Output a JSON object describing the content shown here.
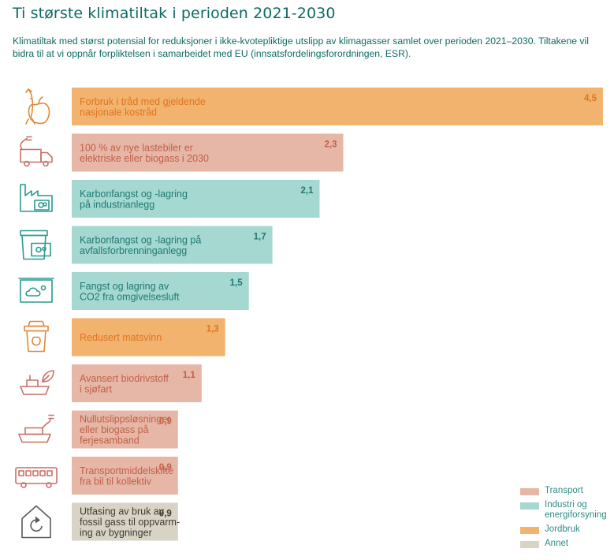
{
  "title": "Ti største klimatiltak i perioden 2021-2030",
  "subtitle": "Klimatiltak med størst potensial for reduksjoner i ikke-kvotepliktige utslipp av klimagasser samlet over perioden 2021–2030. Tiltakene vil bidra til at vi oppnår forpliktelsen i samarbeidet med EU (innsatsfordelingsforordningen, ESR).",
  "colors": {
    "Transport": {
      "bar": "#e6b7a6",
      "text": "#c25f48",
      "icon": "#c96f66"
    },
    "Industri og energiforsyning": {
      "bar": "#a5d8d1",
      "text": "#1d7a72",
      "icon": "#2a9a90"
    },
    "Jordbruk": {
      "bar": "#f2b36e",
      "text": "#df7422",
      "icon": "#e08a3a"
    },
    "Annet": {
      "bar": "#d8d3c4",
      "text": "#3f3a34",
      "icon": "#5e5a55"
    }
  },
  "legend": [
    {
      "name": "Transport",
      "label": "Transport"
    },
    {
      "name": "Industri og energiforsyning",
      "label": "Industri og energiforsyning"
    },
    {
      "name": "Jordbruk",
      "label": "Jordbruk"
    },
    {
      "name": "Annet",
      "label": "Annet"
    }
  ],
  "chart_data": {
    "type": "bar",
    "orientation": "horizontal",
    "title": "Ti største klimatiltak i perioden 2021-2030",
    "xlim": [
      0,
      4.5
    ],
    "categories": [
      "Forbruk i tråd med gjeldende nasjonale kostråd",
      "100 % av nye lastebiler er elektriske eller biogass i 2030",
      "Karbonfangst og -lagring på industrianlegg",
      "Karbonfangst og -lagring på avfallsforbrenninganlegg",
      "Fangst og lagring av CO2 fra omgivelsesluft",
      "Redusert matsvinn",
      "Avansert biodrivstoff i sjøfart",
      "Nullutslippsløsninger eller biogass på ferjesamband",
      "Transportmiddelskifte fra bil til kollektiv",
      "Utfasing av bruk av fossil gass til oppvarming av bygninger"
    ],
    "bars": [
      {
        "lines": [
          "Forbruk i tråd med gjeldende",
          "nasjonale kostråd"
        ],
        "value": 4.5,
        "value_label": "4,5",
        "group": "Jordbruk",
        "icon": "fish-apple-icon"
      },
      {
        "lines": [
          "100 % av nye lastebiler er",
          "elektriske eller biogass i 2030"
        ],
        "value": 2.3,
        "value_label": "2,3",
        "group": "Transport",
        "icon": "electric-truck-icon"
      },
      {
        "lines": [
          "Karbonfangst og -lagring",
          "på industrianlegg"
        ],
        "value": 2.1,
        "value_label": "2,1",
        "group": "Industri og energiforsyning",
        "icon": "factory-capture-icon"
      },
      {
        "lines": [
          "Karbonfangst og -lagring på",
          "avfallsforbrenninganlegg"
        ],
        "value": 1.7,
        "value_label": "1,7",
        "group": "Industri og energiforsyning",
        "icon": "waste-bin-capture-icon"
      },
      {
        "lines": [
          "Fangst og lagring av",
          "CO2 fra omgivelsesluft"
        ],
        "value": 1.5,
        "value_label": "1,5",
        "group": "Industri og energiforsyning",
        "icon": "air-capture-icon"
      },
      {
        "lines": [
          "Redusert matsvinn"
        ],
        "value": 1.3,
        "value_label": "1,3",
        "group": "Jordbruk",
        "icon": "food-waste-bin-icon"
      },
      {
        "lines": [
          "Avansert biodrivstoff",
          "i sjøfart"
        ],
        "value": 1.1,
        "value_label": "1,1",
        "group": "Transport",
        "icon": "bio-ship-icon"
      },
      {
        "lines": [
          "Nullutslippsløsninger",
          "eller biogass på",
          "ferjesamband"
        ],
        "value": 0.9,
        "value_label": "0,9",
        "group": "Transport",
        "icon": "electric-ferry-icon"
      },
      {
        "lines": [
          "Transportmiddelskifte",
          "fra bil til kollektiv"
        ],
        "value": 0.9,
        "value_label": "0,9",
        "group": "Transport",
        "icon": "bus-icon"
      },
      {
        "lines": [
          "Utfasing av bruk av",
          "fossil gass til oppvarm-",
          "ing av bygninger"
        ],
        "value": 0.9,
        "value_label": "0,9",
        "group": "Annet",
        "icon": "house-heating-icon"
      }
    ]
  }
}
